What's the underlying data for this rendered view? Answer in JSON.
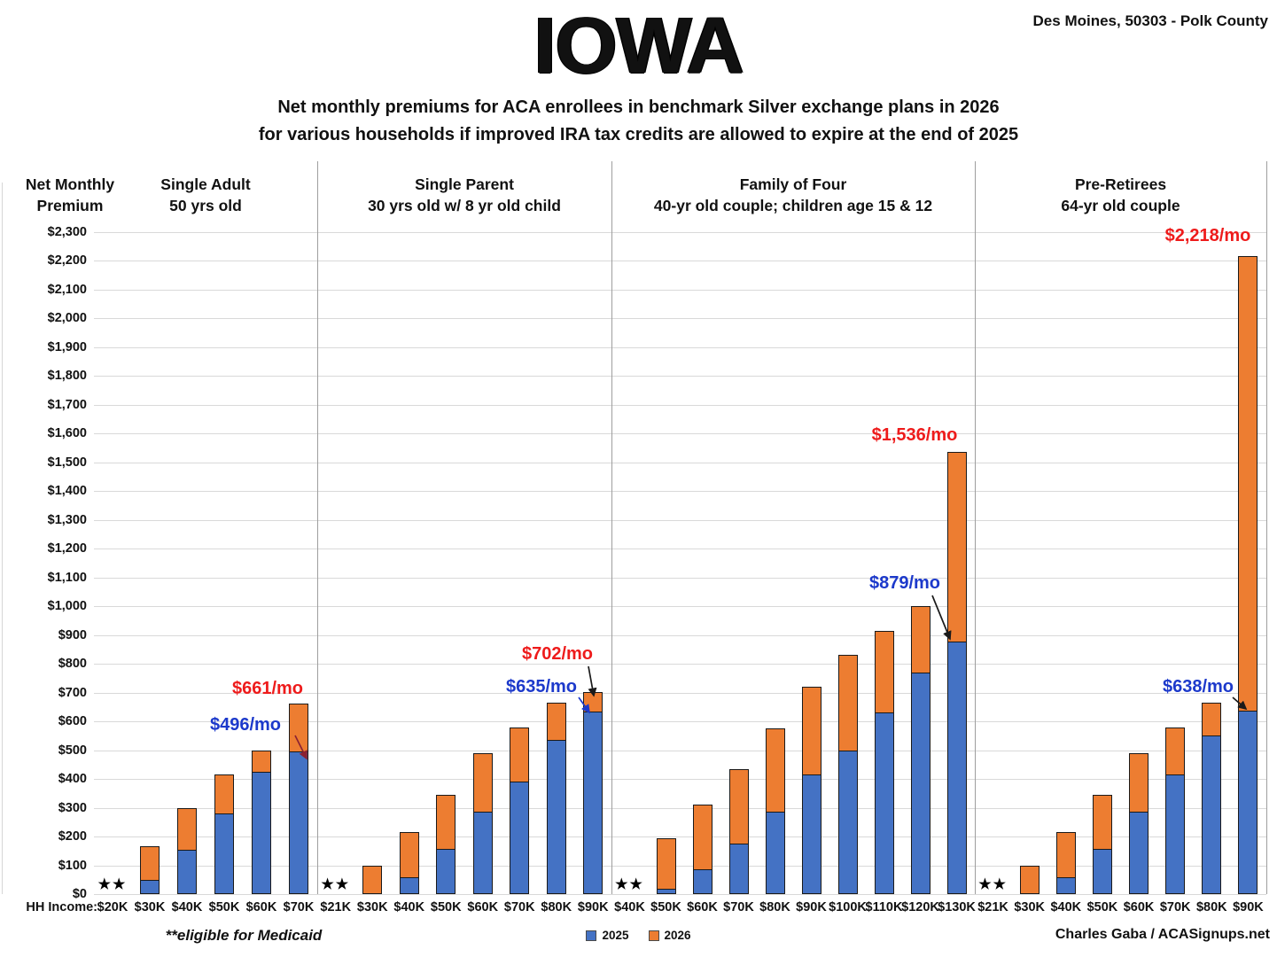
{
  "header": {
    "title": "IOWA",
    "location": "Des Moines, 50303 - Polk County",
    "subtitle_line1": "Net monthly premiums for ACA enrollees in benchmark Silver exchange plans in 2026",
    "subtitle_line2": "for various households if improved IRA tax credits are allowed to expire at the end of 2025"
  },
  "axis": {
    "y_title_line1": "Net Monthly",
    "y_title_line2": "Premium",
    "x_title": "HH Income:"
  },
  "legend": {
    "items": [
      {
        "label": "2025",
        "color": "#4472C4"
      },
      {
        "label": "2026",
        "color": "#ED7D31"
      }
    ]
  },
  "footer": {
    "footnote": "**eligible for Medicaid",
    "credit": "Charles Gaba / ACASignups.net"
  },
  "colors": {
    "bar_2025": "#4472C4",
    "bar_2026": "#ED7D31",
    "annotation_red": "#EE1B1B",
    "annotation_blue": "#1C39CB",
    "arrow_darkred": "#8B2233",
    "arrow_black": "#1a1a1a",
    "gridline": "#d9d9d9",
    "separator": "#9e9e9e"
  },
  "chart_data": {
    "type": "bar",
    "stacking": "overlap",
    "title": "IOWA",
    "xlabel": "HH Income:",
    "ylabel": "Net Monthly Premium",
    "ylim": [
      0,
      2300
    ],
    "ytick_step": 100,
    "grid": true,
    "legend_position": "bottom",
    "series_names": [
      "2025",
      "2026"
    ],
    "medicaid_marker": "★★",
    "groups": [
      {
        "header_line1": "Single Adult",
        "header_line2": "50 yrs old",
        "categories": [
          "$20K",
          "$30K",
          "$40K",
          "$50K",
          "$60K",
          "$70K"
        ],
        "values_2025": [
          null,
          50,
          155,
          280,
          425,
          496
        ],
        "values_2026": [
          null,
          165,
          300,
          415,
          500,
          661
        ],
        "medicaid_eligible": [
          "$20K"
        ],
        "annotations": [
          {
            "text": "$661/mo",
            "series": "2026",
            "category": "$70K",
            "color": "red"
          },
          {
            "text": "$496/mo",
            "series": "2025",
            "category": "$70K",
            "color": "blue"
          }
        ]
      },
      {
        "header_line1": "Single Parent",
        "header_line2": "30 yrs old w/ 8 yr old child",
        "categories": [
          "$21K",
          "$30K",
          "$40K",
          "$50K",
          "$60K",
          "$70K",
          "$80K",
          "$90K"
        ],
        "values_2025": [
          null,
          0,
          60,
          158,
          285,
          390,
          535,
          635
        ],
        "values_2026": [
          null,
          100,
          215,
          345,
          490,
          580,
          665,
          702
        ],
        "medicaid_eligible": [
          "$21K"
        ],
        "annotations": [
          {
            "text": "$702/mo",
            "series": "2026",
            "category": "$90K",
            "color": "red"
          },
          {
            "text": "$635/mo",
            "series": "2025",
            "category": "$90K",
            "color": "blue"
          }
        ]
      },
      {
        "header_line1": "Family of Four",
        "header_line2": "40-yr old couple; children age 15 & 12",
        "categories": [
          "$40K",
          "$50K",
          "$60K",
          "$70K",
          "$80K",
          "$90K",
          "$100K",
          "$110K",
          "$120K",
          "$130K"
        ],
        "values_2025": [
          null,
          20,
          85,
          175,
          285,
          415,
          500,
          630,
          770,
          879
        ],
        "values_2026": [
          null,
          195,
          310,
          435,
          575,
          720,
          830,
          915,
          1000,
          1536
        ],
        "medicaid_eligible": [
          "$40K"
        ],
        "annotations": [
          {
            "text": "$1,536/mo",
            "series": "2026",
            "category": "$130K",
            "color": "red"
          },
          {
            "text": "$879/mo",
            "series": "2025",
            "category": "$130K",
            "color": "blue"
          }
        ]
      },
      {
        "header_line1": "Pre-Retirees",
        "header_line2": "64-yr old couple",
        "categories": [
          "$21K",
          "$30K",
          "$40K",
          "$50K",
          "$60K",
          "$70K",
          "$80K",
          "$90K"
        ],
        "values_2025": [
          null,
          0,
          60,
          158,
          285,
          415,
          550,
          638
        ],
        "values_2026": [
          null,
          100,
          215,
          345,
          490,
          580,
          665,
          2218
        ],
        "medicaid_eligible": [
          "$21K"
        ],
        "annotations": [
          {
            "text": "$2,218/mo",
            "series": "2026",
            "category": "$90K",
            "color": "red"
          },
          {
            "text": "$638/mo",
            "series": "2025",
            "category": "$90K",
            "color": "blue"
          }
        ]
      }
    ]
  }
}
